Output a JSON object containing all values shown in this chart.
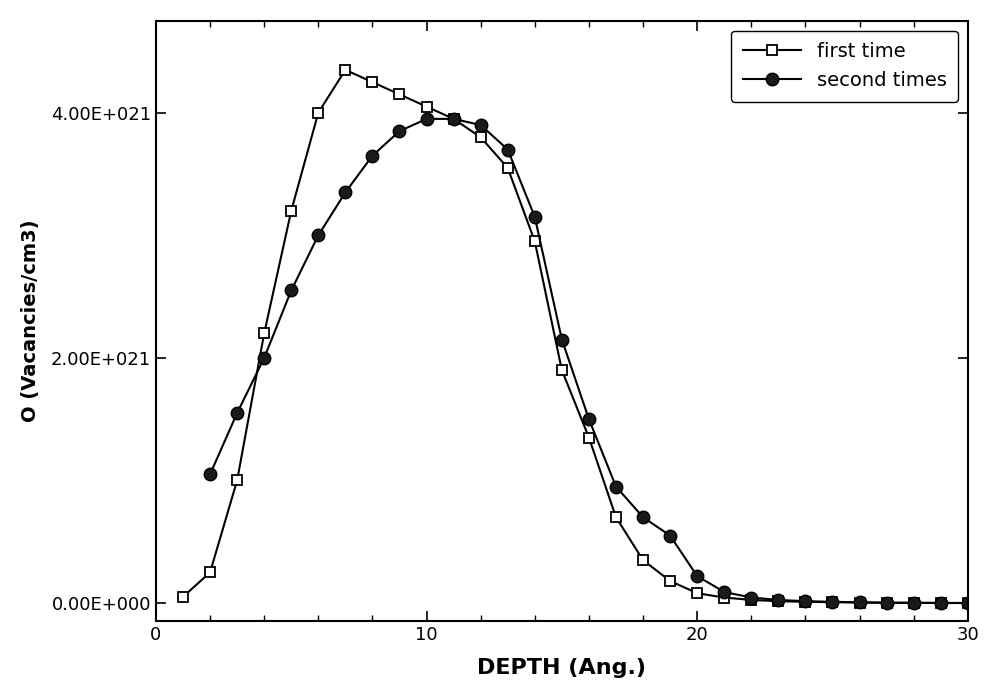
{
  "first_time_x": [
    1,
    2,
    3,
    4,
    5,
    6,
    7,
    8,
    9,
    10,
    11,
    12,
    13,
    14,
    15,
    16,
    17,
    18,
    19,
    20,
    21,
    22,
    23,
    24,
    25,
    26,
    27,
    28,
    29,
    30
  ],
  "first_time_y": [
    5e+19,
    2.5e+20,
    1e+21,
    2.2e+21,
    3.2e+21,
    4e+21,
    4.35e+21,
    4.25e+21,
    4.15e+21,
    4.05e+21,
    3.95e+21,
    3.8e+21,
    3.55e+21,
    2.95e+21,
    1.9e+21,
    1.35e+21,
    7e+20,
    3.5e+20,
    1.8e+20,
    8e+19,
    4.5e+19,
    2.5e+19,
    1.5e+19,
    1e+19,
    7e+18,
    4e+18,
    2e+18,
    1e+18,
    5e+17,
    0.0
  ],
  "second_times_x": [
    2,
    3,
    4,
    5,
    6,
    7,
    8,
    9,
    10,
    11,
    12,
    13,
    14,
    15,
    16,
    17,
    18,
    19,
    20,
    21,
    22,
    23,
    24,
    25,
    26,
    27,
    28,
    29,
    30
  ],
  "second_times_y": [
    1.05e+21,
    1.55e+21,
    2e+21,
    2.55e+21,
    3e+21,
    3.35e+21,
    3.65e+21,
    3.85e+21,
    3.95e+21,
    3.95e+21,
    3.9e+21,
    3.7e+21,
    3.15e+21,
    2.15e+21,
    1.5e+21,
    9.5e+20,
    7e+20,
    5.5e+20,
    2.2e+20,
    9e+19,
    4.5e+19,
    2.5e+19,
    1.5e+19,
    1e+19,
    6e+18,
    3e+18,
    2e+18,
    1e+18,
    0.0
  ],
  "xlabel": "DEPTH (Ang.)",
  "ylabel": "O (Vacancies/cm3)",
  "xlim": [
    0,
    30
  ],
  "ylim": [
    -1.5e+20,
    4.75e+21
  ],
  "yticks": [
    0.0,
    2e+21,
    4e+21
  ],
  "ytick_labels": [
    "0.00E+000",
    "2.00E+021",
    "4.00E+021"
  ],
  "xticks": [
    0,
    10,
    20,
    30
  ],
  "legend_labels": [
    "first time",
    "second times"
  ],
  "background_color": "#ffffff"
}
